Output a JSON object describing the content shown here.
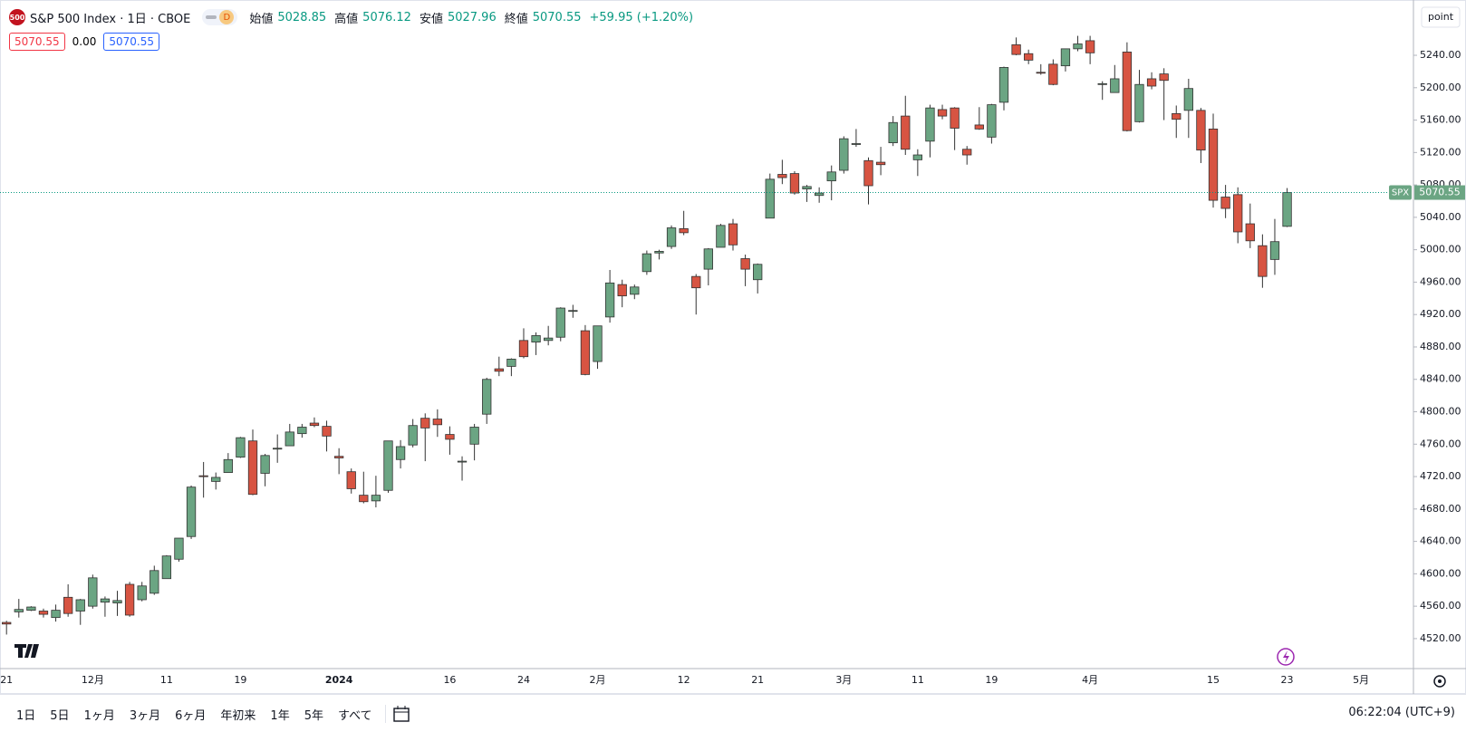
{
  "header": {
    "logo": "500",
    "symbol": "S&P 500 Index · 1日 · CBOE",
    "badge": "D",
    "open_label": "始値",
    "high_label": "高値",
    "low_label": "安値",
    "close_label": "終値",
    "change": "+59.95 (+1.20%)",
    "spread": "0.00"
  },
  "price_scale_mode": "point",
  "toolbar": {
    "ranges": [
      "1日",
      "5日",
      "1ヶ月",
      "3ヶ月",
      "6ヶ月",
      "年初来",
      "1年",
      "5年",
      "すべて"
    ],
    "time": "06:22:04 (UTC+9)"
  },
  "chart_data": {
    "type": "candlestick",
    "last_price_label": "SPX",
    "up_color": "#6ba583",
    "down_color": "#d75442",
    "grid": false,
    "categories": [
      "21",
      null,
      null,
      null,
      null,
      null,
      null,
      "12月",
      null,
      null,
      null,
      null,
      null,
      "11",
      null,
      null,
      null,
      null,
      null,
      "19",
      null,
      null,
      null,
      null,
      null,
      null,
      null,
      "2024",
      null,
      null,
      null,
      null,
      null,
      null,
      null,
      null,
      "16",
      null,
      null,
      null,
      null,
      null,
      "24",
      null,
      null,
      null,
      null,
      null,
      "2月",
      null,
      null,
      null,
      null,
      null,
      null,
      "12",
      null,
      null,
      null,
      null,
      null,
      "21",
      null,
      null,
      null,
      null,
      null,
      null,
      "3月",
      null,
      null,
      null,
      null,
      null,
      "11",
      null,
      null,
      null,
      null,
      null,
      "19",
      null,
      null,
      null,
      null,
      null,
      null,
      null,
      "4月",
      null,
      null,
      null,
      null,
      null,
      null,
      null,
      null,
      null,
      "15",
      null,
      null,
      null,
      null,
      null,
      "23",
      null,
      null,
      null,
      null,
      null,
      "5月"
    ],
    "open": [
      4540,
      4553,
      4555,
      4554,
      4546,
      4571,
      4554,
      4560,
      4565,
      4564,
      4587,
      4568,
      4576,
      4594,
      4618,
      4646,
      4721,
      4714,
      4725,
      4744,
      4764,
      4724,
      4754,
      4758,
      4773,
      4786,
      4782,
      4745,
      4726,
      4697,
      4690,
      4703,
      4741,
      4759,
      4792,
      4791,
      4772,
      4739,
      4760,
      4797,
      4853,
      4856,
      4888,
      4886,
      4888,
      4892,
      4925,
      4900,
      4862,
      4917,
      4957,
      4945,
      4973,
      4996,
      5004,
      5026,
      4967,
      4976,
      5003,
      5032,
      4989,
      4963,
      5039,
      5093,
      5094,
      5075,
      5067,
      5085,
      5098,
      5130,
      5110,
      5108,
      5132,
      5165,
      5111,
      5134,
      5173,
      5175,
      5124,
      5154,
      5139,
      5182,
      5253,
      5242,
      5219,
      5229,
      5227,
      5248,
      5258,
      5204,
      5194,
      5244,
      5158,
      5211,
      5217,
      5168,
      5172,
      5172,
      5149,
      5065,
      5068,
      5032,
      5005,
      4988,
      5028.85,
      null,
      null,
      null,
      null,
      null,
      null
    ],
    "high": [
      4542,
      4569,
      4560,
      4557,
      4562,
      4587,
      4569,
      4599,
      4572,
      4579,
      4590,
      4590,
      4610,
      4623,
      4644,
      4709,
      4738,
      4725,
      4749,
      4769,
      4778,
      4748,
      4772,
      4785,
      4785,
      4793,
      4789,
      4755,
      4730,
      4726,
      4721,
      4764,
      4765,
      4791,
      4798,
      4803,
      4782,
      4745,
      4785,
      4842,
      4868,
      4866,
      4903,
      4898,
      4906,
      4929,
      4932,
      4907,
      4906,
      4975,
      4963,
      4957,
      4999,
      5000,
      5030,
      5048,
      4970,
      5002,
      5032,
      5038,
      4994,
      4983,
      5094,
      5111,
      5097,
      5080,
      5077,
      5104,
      5140,
      5149,
      5114,
      5127,
      5165,
      5190,
      5124,
      5179,
      5179,
      5176,
      5128,
      5176,
      5180,
      5226,
      5262,
      5247,
      5229,
      5235,
      5248,
      5264,
      5264,
      5208,
      5228,
      5256,
      5222,
      5219,
      5224,
      5178,
      5211,
      5175,
      5168,
      5080,
      5077,
      5057,
      5019,
      5038,
      5076.12,
      null,
      null,
      null,
      null,
      null,
      null
    ],
    "low": [
      4525,
      4546,
      4554,
      4546,
      4541,
      4547,
      4537,
      4557,
      4547,
      4548,
      4547,
      4566,
      4574,
      4594,
      4615,
      4643,
      4694,
      4704,
      4725,
      4743,
      4697,
      4708,
      4737,
      4758,
      4768,
      4781,
      4751,
      4723,
      4699,
      4687,
      4682,
      4700,
      4730,
      4756,
      4739,
      4769,
      4747,
      4715,
      4740,
      4785,
      4844,
      4844,
      4866,
      4870,
      4882,
      4887,
      4916,
      4845,
      4853,
      4910,
      4929,
      4939,
      4969,
      4988,
      5001,
      5018,
      4920,
      4956,
      5003,
      4999,
      4955,
      4946,
      5039,
      5081,
      5068,
      5059,
      5058,
      5061,
      5094,
      5127,
      5056,
      5092,
      5128,
      5117,
      5091,
      5114,
      5161,
      5123,
      5105,
      5148,
      5131,
      5172,
      5240,
      5229,
      5216,
      5203,
      5220,
      5245,
      5229,
      5185,
      5194,
      5146,
      5157,
      5198,
      5160,
      5138,
      5138,
      5107,
      5052,
      5039,
      5008,
      5002,
      4953,
      4969,
      5027.96,
      null,
      null,
      null,
      null,
      null,
      null
    ],
    "close": [
      4538,
      4556,
      4559,
      4550,
      4555,
      4551,
      4568,
      4595,
      4569,
      4567,
      4549,
      4585,
      4604,
      4622,
      4644,
      4707,
      4720,
      4719,
      4741,
      4768,
      4698,
      4746,
      4755,
      4775,
      4781,
      4783,
      4770,
      4743,
      4705,
      4689,
      4697,
      4764,
      4757,
      4783,
      4780,
      4784,
      4766,
      4739,
      4781,
      4840,
      4850,
      4865,
      4868,
      4894,
      4891,
      4928,
      4925,
      4846,
      4906,
      4959,
      4943,
      4954,
      4995,
      4998,
      5027,
      5021,
      4953,
      5001,
      5030,
      5006,
      4976,
      4982,
      5087,
      5089,
      5070,
      5078,
      5070,
      5096,
      5137,
      5131,
      5079,
      5105,
      5157,
      5124,
      5117,
      5175,
      5165,
      5150,
      5117,
      5149,
      5179,
      5225,
      5241,
      5234,
      5218,
      5204,
      5248,
      5254,
      5243,
      5205,
      5211,
      5147,
      5204,
      5202,
      5209,
      5161,
      5199,
      5123,
      5061,
      5051,
      5022,
      5011,
      4967,
      5010,
      5070.55,
      null,
      null,
      null,
      null,
      null,
      null
    ],
    "ylim": [
      4483,
      5306
    ],
    "yticks": [
      {
        "value": 4520,
        "label": "4520.00"
      },
      {
        "value": 4560,
        "label": "4560.00"
      },
      {
        "value": 4600,
        "label": "4600.00"
      },
      {
        "value": 4640,
        "label": "4640.00"
      },
      {
        "value": 4680,
        "label": "4680.00"
      },
      {
        "value": 4720,
        "label": "4720.00"
      },
      {
        "value": 4760,
        "label": "4760.00"
      },
      {
        "value": 4800,
        "label": "4800.00"
      },
      {
        "value": 4840,
        "label": "4840.00"
      },
      {
        "value": 4880,
        "label": "4880.00"
      },
      {
        "value": 4920,
        "label": "4920.00"
      },
      {
        "value": 4960,
        "label": "4960.00"
      },
      {
        "value": 5000,
        "label": "5000.00"
      },
      {
        "value": 5040,
        "label": "5040.00"
      },
      {
        "value": 5080,
        "label": "5080.00"
      },
      {
        "value": 5120,
        "label": "5120.00"
      },
      {
        "value": 5160,
        "label": "5160.00"
      },
      {
        "value": 5200,
        "label": "5200.00"
      },
      {
        "value": 5240,
        "label": "5240.00"
      }
    ]
  }
}
